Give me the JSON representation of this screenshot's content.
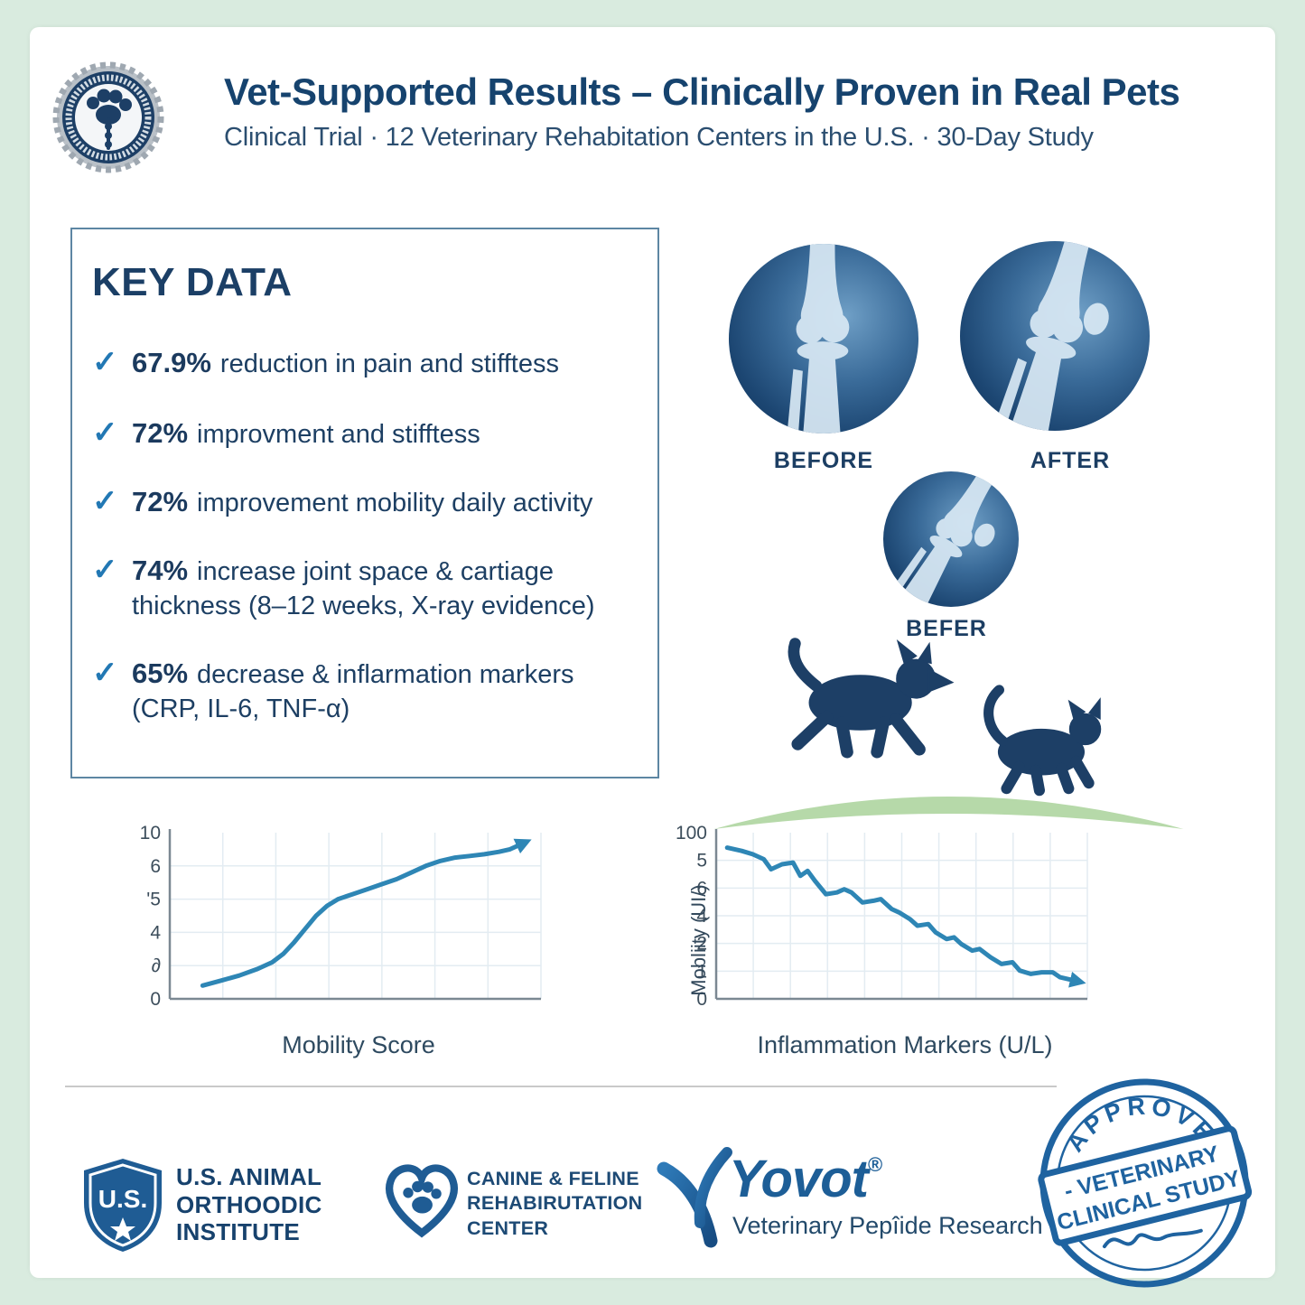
{
  "header": {
    "title": "Vet-Supported Results – Clinically Proven in Real Pets",
    "subtitle": "Clinical Trial · 12 Veterinary Rehabitation Centers in the U.S. · 30-Day Study"
  },
  "key_data": {
    "heading": "KEY DATA",
    "check": "✓",
    "items": [
      {
        "stat": "67.9%",
        "line1": "reduction in pain and stifftess"
      },
      {
        "stat": "72%",
        "line1": "improvment and stifftess"
      },
      {
        "stat": "72%",
        "line1": "improvement mobility daily activity"
      },
      {
        "stat": "74%",
        "line1": "increase joint space & cartiage",
        "line2": "thickness (8–12 weeks, X-ray evidence)"
      },
      {
        "stat": "65%",
        "line1": "decrease & inflarmation markers",
        "line2": "(CRP, IL-6, TNF-α)"
      }
    ]
  },
  "xray": {
    "labels": [
      "BEFORE",
      "AFTER",
      "BEFER"
    ]
  },
  "chart_data": [
    {
      "type": "line",
      "title": "Mobility Score",
      "xlabel": "",
      "ylabel": "",
      "y_ticks": [
        "10",
        "6",
        "'5",
        "4",
        "∂",
        "0"
      ],
      "ylim": [
        0,
        10
      ],
      "trend": "up",
      "grid": true,
      "line_color": "#2e86b5",
      "points": [
        [
          9,
          8
        ],
        [
          14,
          11
        ],
        [
          19,
          14
        ],
        [
          24,
          18
        ],
        [
          28,
          22
        ],
        [
          31,
          27
        ],
        [
          34,
          34
        ],
        [
          37,
          42
        ],
        [
          40,
          50
        ],
        [
          43,
          56
        ],
        [
          46,
          60
        ],
        [
          50,
          63
        ],
        [
          54,
          66
        ],
        [
          58,
          69
        ],
        [
          62,
          72
        ],
        [
          66,
          76
        ],
        [
          70,
          80
        ],
        [
          74,
          83
        ],
        [
          78,
          85
        ],
        [
          82,
          86
        ],
        [
          86,
          87
        ],
        [
          90,
          88.5
        ],
        [
          93,
          90
        ],
        [
          96,
          93
        ]
      ]
    },
    {
      "type": "line",
      "title": "Inflammation Markers (U/L)",
      "xlabel": "",
      "ylabel": "Mobliity (UI/)",
      "y_ticks": [
        "100",
        "5",
        "6",
        "4",
        "2",
        "1",
        "0"
      ],
      "ylim": [
        0,
        100
      ],
      "trend": "down",
      "grid": true,
      "line_color": "#2e86b5",
      "points": [
        [
          3,
          91
        ],
        [
          7,
          89
        ],
        [
          10,
          87
        ],
        [
          13,
          84
        ],
        [
          15,
          78
        ],
        [
          18,
          81
        ],
        [
          21,
          82
        ],
        [
          23,
          74
        ],
        [
          25,
          77
        ],
        [
          27,
          71
        ],
        [
          30,
          63
        ],
        [
          33,
          64
        ],
        [
          35,
          66
        ],
        [
          37,
          64
        ],
        [
          40,
          58
        ],
        [
          43,
          59
        ],
        [
          45,
          60
        ],
        [
          48,
          54
        ],
        [
          50,
          52
        ],
        [
          53,
          48
        ],
        [
          55,
          44
        ],
        [
          58,
          45
        ],
        [
          60,
          40
        ],
        [
          63,
          36
        ],
        [
          65,
          37
        ],
        [
          67,
          33
        ],
        [
          70,
          29
        ],
        [
          72,
          30
        ],
        [
          75,
          25
        ],
        [
          78,
          21
        ],
        [
          81,
          22
        ],
        [
          83,
          17
        ],
        [
          86,
          15
        ],
        [
          89,
          16
        ],
        [
          92,
          16
        ],
        [
          94,
          13
        ],
        [
          98,
          11
        ]
      ]
    }
  ],
  "footer": {
    "org1": {
      "badge": "U.S.",
      "lines": [
        "U.S. ANIMAL",
        "ORTHOODIC",
        "INSTITUTE"
      ]
    },
    "org2": {
      "lines": [
        "CANINE & FELINE",
        "REHABIRUTATION",
        "CENTER"
      ]
    },
    "brand": {
      "name": "Yovot",
      "reg": "®",
      "tagline": "Veterinary Pepîide Research"
    },
    "stamp": {
      "arc": "APPROVED",
      "line1": "- VETERINARY",
      "line2": "CLINICAL STUDY"
    }
  },
  "colors": {
    "background_mint": "#d9ebdf",
    "navy_text": "#17426d",
    "check_blue": "#2278b4",
    "chart_line_blue": "#2e86b5",
    "stamp_blue": "#1f63a0",
    "silhouette_navy": "#1d3f66",
    "hill_green": "#b6d9a9",
    "xray_navy": "#123a61"
  }
}
